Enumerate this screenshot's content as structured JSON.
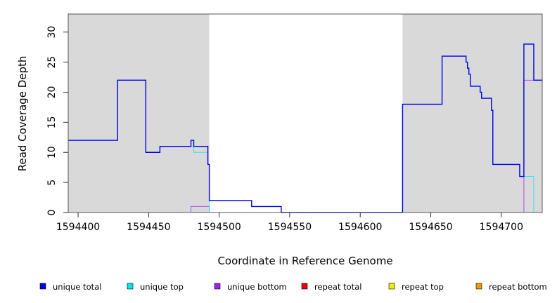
{
  "chart_data": {
    "type": "line",
    "title": "",
    "xlabel": "Coordinate in Reference Genome",
    "ylabel": "Read Coverage Depth",
    "xlim": [
      1594393,
      1594729
    ],
    "ylim": [
      0,
      33
    ],
    "x_ticks": [
      1594400,
      1594450,
      1594500,
      1594550,
      1594600,
      1594650,
      1594700
    ],
    "y_ticks": [
      0,
      5,
      10,
      15,
      20,
      25,
      30
    ],
    "grid": false,
    "shaded_regions": [
      {
        "x": [
          1594393,
          1594493
        ],
        "color": "#d9d9d9"
      },
      {
        "x": [
          1594630,
          1594729
        ],
        "color": "#d9d9d9"
      }
    ],
    "series": [
      {
        "name": "unique total",
        "color": "#0000ee",
        "step": true,
        "x": [
          1594393,
          1594428,
          1594448,
          1594458,
          1594480,
          1594482,
          1594492,
          1594493,
          1594523,
          1594544,
          1594630,
          1594658,
          1594675,
          1594676,
          1594677,
          1594678,
          1594679,
          1594685,
          1594686,
          1594693,
          1594694,
          1594713,
          1594716,
          1594723,
          1594729
        ],
        "y": [
          12,
          22,
          10,
          11,
          12,
          11,
          8,
          2,
          1,
          0,
          18,
          26,
          25,
          24,
          23,
          21,
          21,
          20,
          19,
          17,
          8,
          6,
          28,
          22,
          22
        ]
      },
      {
        "name": "unique top",
        "color": "#00e5ee",
        "step": true,
        "x": [
          1594393,
          1594428,
          1594448,
          1594458,
          1594482,
          1594492,
          1594493,
          1594523,
          1594544,
          1594630,
          1594658,
          1594675,
          1594676,
          1594677,
          1594678,
          1594679,
          1594685,
          1594686,
          1594693,
          1594694,
          1594713,
          1594716,
          1594723,
          1594729
        ],
        "y": [
          12,
          22,
          10,
          11,
          10,
          8,
          0,
          0,
          0,
          18,
          26,
          25,
          24,
          23,
          21,
          21,
          20,
          19,
          17,
          8,
          6,
          6,
          0,
          0
        ]
      },
      {
        "name": "unique bottom",
        "color": "#a020f0",
        "step": true,
        "x": [
          1594393,
          1594480,
          1594493,
          1594716,
          1594729
        ],
        "y": [
          0,
          1,
          0,
          22,
          22
        ]
      },
      {
        "name": "repeat total",
        "color": "#ee0000",
        "step": true,
        "x": [
          1594393,
          1594729
        ],
        "y": [
          0,
          0
        ]
      },
      {
        "name": "repeat top",
        "color": "#eeee00",
        "step": true,
        "x": [
          1594393,
          1594729
        ],
        "y": [
          0,
          0
        ]
      },
      {
        "name": "repeat bottom",
        "color": "#ee9a00",
        "step": true,
        "x": [
          1594393,
          1594729
        ],
        "y": [
          0,
          0
        ]
      }
    ],
    "legend": {
      "placement": "bottom",
      "entries": [
        {
          "label": "unique total",
          "color": "#0000ee"
        },
        {
          "label": "unique top",
          "color": "#00e5ee"
        },
        {
          "label": "unique bottom",
          "color": "#a020f0"
        },
        {
          "label": "repeat total",
          "color": "#ee0000"
        },
        {
          "label": "repeat top",
          "color": "#eeee00"
        },
        {
          "label": "repeat bottom",
          "color": "#ee9a00"
        }
      ]
    }
  }
}
